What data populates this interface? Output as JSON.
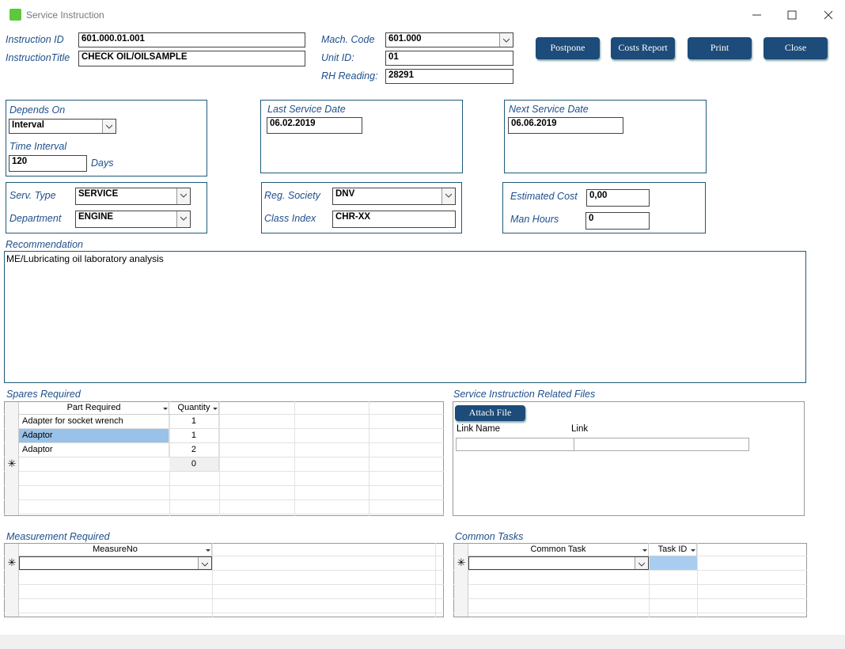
{
  "window": {
    "title": "Service Instruction"
  },
  "header": {
    "instruction_id": {
      "label": "Instruction ID",
      "value": "601.000.01.001"
    },
    "instruction_title": {
      "label": "InstructionTitle",
      "value": "CHECK OIL/OILSAMPLE"
    },
    "mach_code": {
      "label": "Mach. Code",
      "value": "601.000"
    },
    "unit_id": {
      "label": "Unit ID:",
      "value": "01"
    },
    "rh_reading": {
      "label": "RH Reading:",
      "value": "28291"
    }
  },
  "buttons": [
    "Postpone",
    "Costs Report",
    "Print",
    "Close"
  ],
  "schedule": {
    "depends_on": {
      "label": "Depends On",
      "value": "Interval"
    },
    "time_interval": {
      "label": "Time Interval",
      "value": "120",
      "unit": "Days"
    },
    "last_service_date": {
      "label": "Last Service Date",
      "value": "06.02.2019"
    },
    "next_service_date": {
      "label": "Next Service Date",
      "value": "06.06.2019"
    }
  },
  "classification": {
    "serv_type": {
      "label": "Serv. Type",
      "value": "SERVICE"
    },
    "department": {
      "label": "Department",
      "value": "ENGINE"
    },
    "reg_society": {
      "label": "Reg. Society",
      "value": "DNV"
    },
    "class_index": {
      "label": "Class Index",
      "value": "CHR-XX"
    },
    "estimated_cost": {
      "label": "Estimated Cost",
      "value": "0,00"
    },
    "man_hours": {
      "label": "Man Hours",
      "value": "0"
    }
  },
  "recommendation": {
    "label": "Recommendation",
    "text": "ME/Lubricating oil laboratory analysis"
  },
  "spares": {
    "title": "Spares Required",
    "columns": [
      "Part Required",
      "Quantity"
    ],
    "rows": [
      [
        "Adapter for socket wrench",
        1
      ],
      [
        "Adaptor",
        1
      ],
      [
        "Adaptor",
        2
      ]
    ],
    "new_row_quantity": 0
  },
  "files": {
    "title": "Service Instruction Related Files",
    "button": "Attach File",
    "columns": [
      "Link Name",
      "Link"
    ]
  },
  "measurements": {
    "title": "Measurement Required",
    "columns": [
      "MeasureNo"
    ]
  },
  "common_tasks": {
    "title": "Common Tasks",
    "columns": [
      "Common Task",
      "Task ID"
    ]
  }
}
